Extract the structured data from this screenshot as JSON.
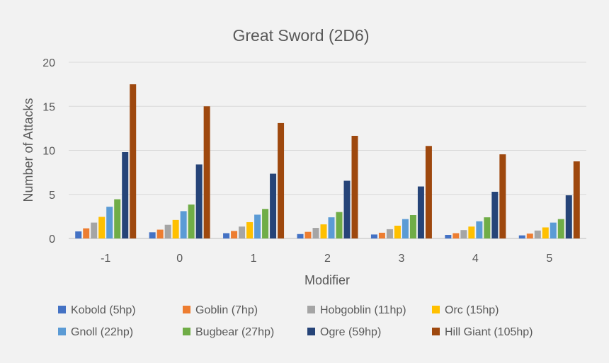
{
  "chart_data": {
    "type": "bar",
    "title": "Great Sword (2D6)",
    "xlabel": "Modifier",
    "ylabel": "Number of Attacks",
    "categories": [
      "-1",
      "0",
      "1",
      "2",
      "3",
      "4",
      "5"
    ],
    "ylim": [
      0,
      20
    ],
    "yticks": [
      0,
      5,
      10,
      15,
      20
    ],
    "grid": true,
    "legend_position": "bottom",
    "series": [
      {
        "name": "Kobold (5hp)",
        "color": "#4472c4",
        "values": [
          0.8,
          0.7,
          0.6,
          0.5,
          0.45,
          0.4,
          0.35
        ]
      },
      {
        "name": "Goblin (7hp)",
        "color": "#ed7d31",
        "values": [
          1.15,
          1.0,
          0.85,
          0.75,
          0.65,
          0.6,
          0.55
        ]
      },
      {
        "name": "Hobgoblin (11hp)",
        "color": "#a5a5a5",
        "values": [
          1.8,
          1.55,
          1.35,
          1.2,
          1.05,
          0.95,
          0.9
        ]
      },
      {
        "name": "Orc (15hp)",
        "color": "#ffc000",
        "values": [
          2.45,
          2.1,
          1.85,
          1.6,
          1.45,
          1.35,
          1.25
        ]
      },
      {
        "name": "Gnoll (22hp)",
        "color": "#5b9bd5",
        "values": [
          3.6,
          3.1,
          2.7,
          2.4,
          2.2,
          1.95,
          1.8
        ]
      },
      {
        "name": "Bugbear (27hp)",
        "color": "#70ad47",
        "values": [
          4.45,
          3.85,
          3.35,
          3.0,
          2.65,
          2.4,
          2.2
        ]
      },
      {
        "name": "Ogre (59hp)",
        "color": "#264478",
        "values": [
          9.8,
          8.4,
          7.35,
          6.55,
          5.9,
          5.3,
          4.9
        ]
      },
      {
        "name": "Hill Giant (105hp)",
        "color": "#9e480e",
        "values": [
          17.5,
          15.0,
          13.1,
          11.65,
          10.5,
          9.55,
          8.75
        ]
      }
    ]
  }
}
